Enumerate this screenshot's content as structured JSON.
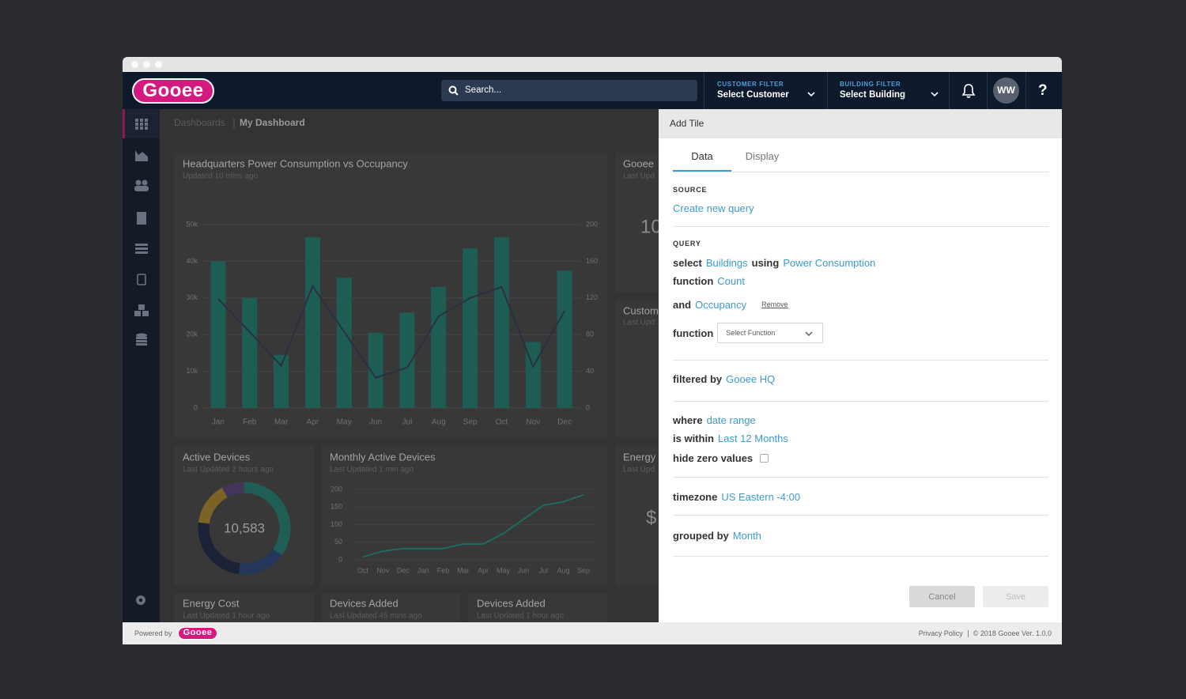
{
  "header": {
    "logo": "Gooee",
    "search_placeholder": "Search...",
    "customer_filter": {
      "label": "CUSTOMER FILTER",
      "value": "Select Customer"
    },
    "building_filter": {
      "label": "BUILDING FILTER",
      "value": "Select Building"
    },
    "avatar": "WW",
    "help": "?"
  },
  "breadcrumb": [
    "Dashboards",
    "My Dashboard"
  ],
  "chart_data": [
    {
      "type": "bar",
      "title": "Headquarters Power Consumption vs Occupancy",
      "subtitle": "Updated 10 mins ago",
      "categories": [
        "Jan",
        "Feb",
        "Mar",
        "Apr",
        "May",
        "Jun",
        "Jul",
        "Aug",
        "Sep",
        "Oct",
        "Nov",
        "Dec"
      ],
      "series": [
        {
          "color": "#1d5d54",
          "values": [
            40000,
            30000,
            14500,
            46500,
            35500,
            20500,
            26000,
            33000,
            43500,
            46500,
            18000,
            37500
          ]
        },
        {
          "type": "line",
          "axis": "y2",
          "color": "#2a3040",
          "values": [
            119,
            83,
            46,
            133,
            83,
            33,
            44,
            100,
            120,
            132,
            45,
            106
          ]
        }
      ],
      "ylim": [
        0,
        50000
      ],
      "yticks": [
        0,
        {
          "value": 10000,
          "label": "10k"
        },
        {
          "value": 20000,
          "label": "20k"
        },
        {
          "value": 30000,
          "label": "30k"
        },
        {
          "value": 40000,
          "label": "40k"
        },
        {
          "value": 50000,
          "label": "50k"
        }
      ],
      "y2lim": [
        0,
        200
      ],
      "y2ticks": [
        0,
        40,
        80,
        120,
        160,
        200
      ],
      "grid": true
    },
    {
      "type": "pie",
      "title": "Active Devices",
      "subtitle": "Last Updated 2 hours ago",
      "center_label": "10,583",
      "values": [
        35,
        17,
        25,
        15,
        8
      ],
      "colors": [
        "#1f5e55",
        "#243659",
        "#1c2236",
        "#7a6324",
        "#44365a"
      ],
      "donut": true
    },
    {
      "type": "line",
      "title": "Monthly Active Devices",
      "subtitle": "Last Updated 1 min ago",
      "categories": [
        "Oct",
        "Nov",
        "Dec",
        "Jan",
        "Feb",
        "Mar",
        "Apr",
        "May",
        "Jun",
        "Jul",
        "Aug",
        "Sep"
      ],
      "series": [
        {
          "color": "#1f6a5e",
          "values": [
            8,
            25,
            32,
            32,
            32,
            45,
            45,
            75,
            115,
            155,
            165,
            185
          ]
        }
      ],
      "ylim": [
        0,
        200
      ],
      "yticks": [
        0,
        50,
        100,
        150,
        200
      ],
      "grid": true
    }
  ],
  "tiles": [
    {
      "title": "Gooee",
      "subtitle": "Last Upd",
      "value": "10"
    },
    {
      "title": "Custom",
      "subtitle": "Last Upd"
    },
    {
      "title": "Energy",
      "subtitle": "Last Upd",
      "value": "$"
    },
    {
      "title": "Energy Cost",
      "subtitle": "Last Updated 1 hour ago"
    },
    {
      "title": "Devices Added",
      "subtitle": "Last Updated 45 mins ago"
    },
    {
      "title": "Devices Added",
      "subtitle": "Last Updated 1 hour ago"
    }
  ],
  "panel": {
    "title": "Add Tile",
    "tabs": [
      "Data",
      "Display"
    ],
    "source": {
      "label": "SOURCE",
      "link": "Create new query"
    },
    "query": {
      "label": "QUERY",
      "select": {
        "keyword": "select",
        "value": "Buildings",
        "keyword2": "using",
        "value2": "Power Consumption"
      },
      "function": {
        "keyword": "function",
        "value": "Count"
      },
      "and": {
        "keyword": "and",
        "value": "Occupancy",
        "action": "Remove"
      },
      "function2": {
        "keyword": "function",
        "placeholder": "Select Function"
      }
    },
    "filtered": {
      "keyword": "filtered by",
      "value": "Gooee HQ"
    },
    "where": {
      "keyword": "where",
      "value": "date range"
    },
    "within": {
      "keyword": "is within",
      "value": "Last 12 Months"
    },
    "hide_zero": {
      "keyword": "hide zero values"
    },
    "timezone": {
      "keyword": "timezone",
      "value": "US Eastern -4:00"
    },
    "grouped": {
      "keyword": "grouped by",
      "value": "Month"
    },
    "buttons": [
      "Cancel",
      "Save"
    ]
  },
  "footer": {
    "powered_by": "Powered by",
    "logo": "Gooee",
    "privacy": "Privacy Policy",
    "copyright": "© 2018 Gooee Ver. 1.0.0"
  }
}
